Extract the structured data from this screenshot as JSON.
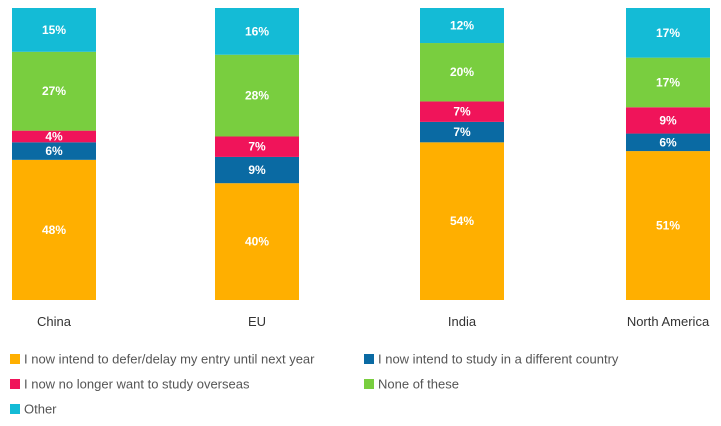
{
  "chart_data": {
    "type": "bar",
    "stacked": true,
    "normalized_percent": true,
    "categories": [
      "China",
      "EU",
      "India",
      "North America"
    ],
    "series": [
      {
        "name": "I now intend to defer/delay my entry until next year",
        "color": "#FFAF00",
        "values": [
          48,
          40,
          54,
          51
        ]
      },
      {
        "name": "I now intend to study in a different country",
        "color": "#0A6AA3",
        "values": [
          6,
          9,
          7,
          6
        ]
      },
      {
        "name": "I now no longer want to study overseas",
        "color": "#F0145A",
        "values": [
          4,
          7,
          7,
          9
        ]
      },
      {
        "name": "None of these",
        "color": "#79CE3F",
        "values": [
          27,
          28,
          20,
          17
        ]
      },
      {
        "name": "Other",
        "color": "#14BBD6",
        "values": [
          15,
          16,
          12,
          17
        ]
      }
    ],
    "value_suffix": "%",
    "ylim": [
      0,
      100
    ],
    "grid": false,
    "legend_position": "bottom"
  }
}
